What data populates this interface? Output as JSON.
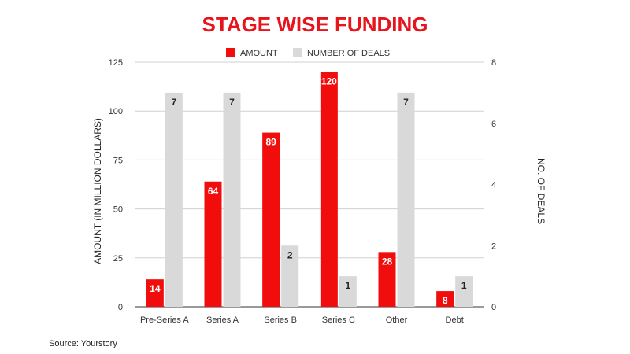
{
  "chart_data": {
    "type": "bar",
    "title": "STAGE WISE FUNDING",
    "categories": [
      "Pre-Series A",
      "Series A",
      "Series B",
      "Series C",
      "Other",
      "Debt"
    ],
    "series": [
      {
        "name": "AMOUNT",
        "axis": "left",
        "color": "#f20d0d",
        "values": [
          14,
          64,
          89,
          120,
          28,
          8
        ]
      },
      {
        "name": "NUMBER OF DEALS",
        "axis": "right",
        "color": "#d9d9d9",
        "values": [
          7,
          7,
          2,
          1,
          7,
          1
        ]
      }
    ],
    "ylabel": "AMOUNT (IN MILLION DOLLARS)",
    "y2label": "NO. OF DEALS",
    "ylim": [
      0,
      125
    ],
    "yticks": [
      0,
      25,
      50,
      75,
      100,
      125
    ],
    "y2lim": [
      0,
      8
    ],
    "y2ticks": [
      0,
      2,
      4,
      6,
      8
    ],
    "legend_position": "top",
    "grid": true
  },
  "source": "Source: Yourstory"
}
